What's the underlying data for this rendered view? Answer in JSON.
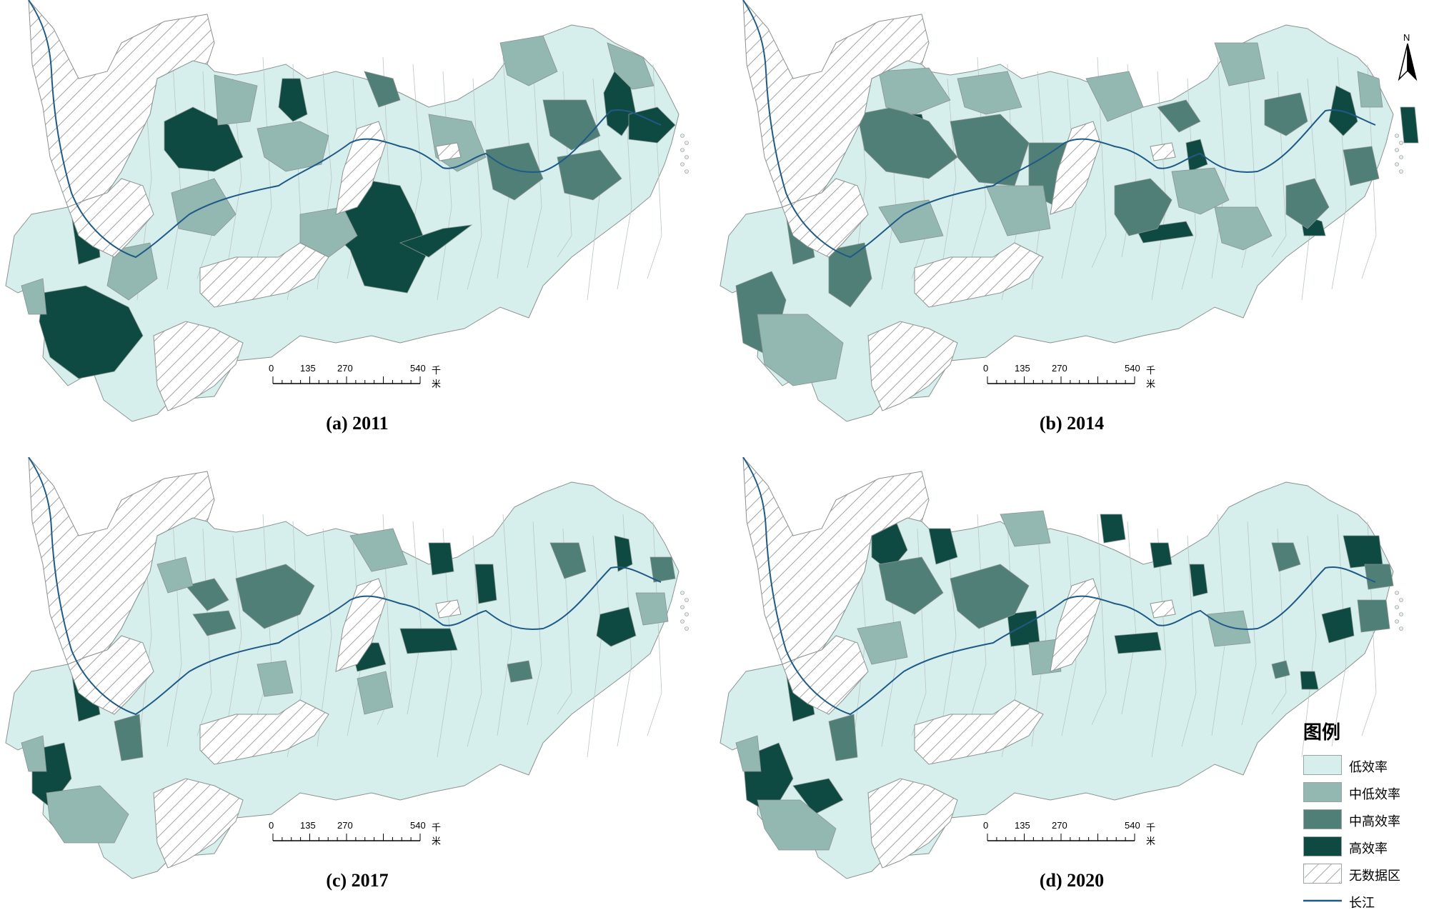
{
  "colors": {
    "low": "#d7efec",
    "midlow": "#93b7b1",
    "midhigh": "#4f7f76",
    "high": "#0f4a42",
    "river": "#1f5a86",
    "outline": "#8a9391",
    "hatch": "#8b8b8b"
  },
  "scale": {
    "ticks": [
      "0",
      "135",
      "270",
      "540"
    ],
    "unit": "千米"
  },
  "north_label": "N",
  "panels": [
    {
      "caption": "(a) 2011"
    },
    {
      "caption": "(b) 2014"
    },
    {
      "caption": "(c) 2017"
    },
    {
      "caption": "(d) 2020"
    }
  ],
  "legend": {
    "title": "图例",
    "items": [
      {
        "label": "低效率",
        "class": "low"
      },
      {
        "label": "中低效率",
        "class": "midlow"
      },
      {
        "label": "中高效率",
        "class": "midhigh"
      },
      {
        "label": "高效率",
        "class": "high"
      },
      {
        "label": "无数据区",
        "class": "nodata"
      },
      {
        "label": "长江",
        "class": "river"
      }
    ]
  }
}
